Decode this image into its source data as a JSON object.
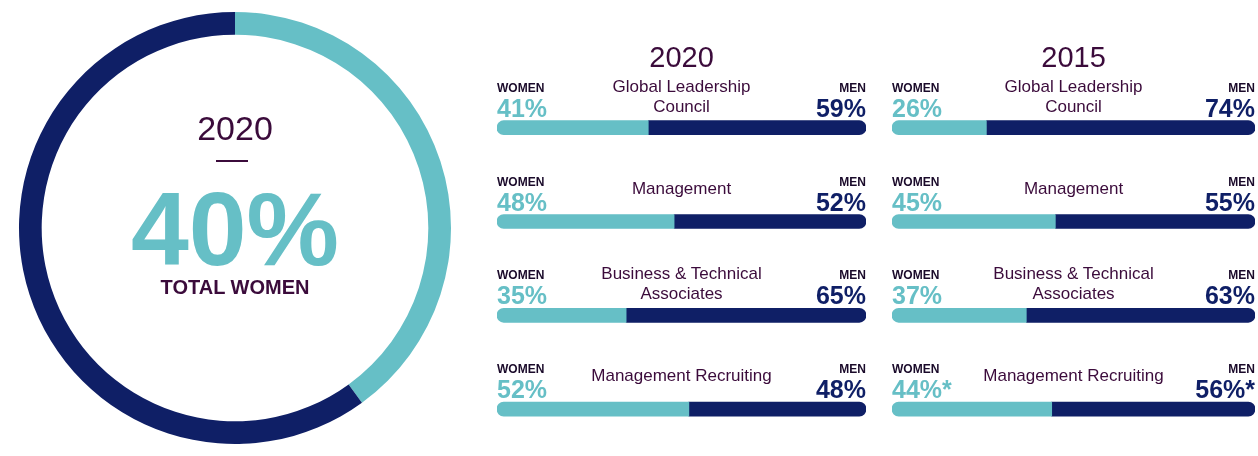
{
  "chart_data": [
    {
      "type": "donut",
      "title": "2020",
      "categories": [
        "TOTAL WOMEN",
        null
      ],
      "values": [
        40,
        60
      ],
      "colors": [
        "#66bfc6",
        "#0f1f66"
      ],
      "value_labels": [
        "40%",
        null
      ]
    },
    {
      "type": "bar",
      "title": "2020",
      "orientation": "horizontal",
      "stacked": true,
      "categories": [
        "Global Leadership Council",
        "Management",
        "Business & Technical Associates",
        "Management Recruiting"
      ],
      "xlim": [
        0,
        100
      ],
      "tick_labels": false,
      "series": [
        {
          "name": "WOMEN",
          "color": "#66bfc6",
          "values": [
            41,
            48,
            35,
            52
          ],
          "value_labels": [
            "41%",
            "48%",
            "35%",
            "52%"
          ]
        },
        {
          "name": "MEN",
          "color": "#0f1f66",
          "values": [
            59,
            52,
            65,
            48
          ],
          "value_labels": [
            "59%",
            "52%",
            "65%",
            "48%"
          ]
        }
      ]
    },
    {
      "type": "bar",
      "title": "2015",
      "orientation": "horizontal",
      "stacked": true,
      "categories": [
        "Global Leadership Council",
        "Management",
        "Business & Technical Associates",
        "Management Recruiting"
      ],
      "xlim": [
        0,
        100
      ],
      "tick_labels": false,
      "series": [
        {
          "name": "WOMEN",
          "color": "#66bfc6",
          "values": [
            26,
            45,
            37,
            44
          ],
          "value_labels": [
            "26%",
            "45%",
            "37%",
            "44%*"
          ]
        },
        {
          "name": "MEN",
          "color": "#0f1f66",
          "values": [
            74,
            55,
            63,
            56
          ],
          "value_labels": [
            "74%",
            "55%",
            "63%",
            "56%*"
          ]
        }
      ]
    }
  ]
}
